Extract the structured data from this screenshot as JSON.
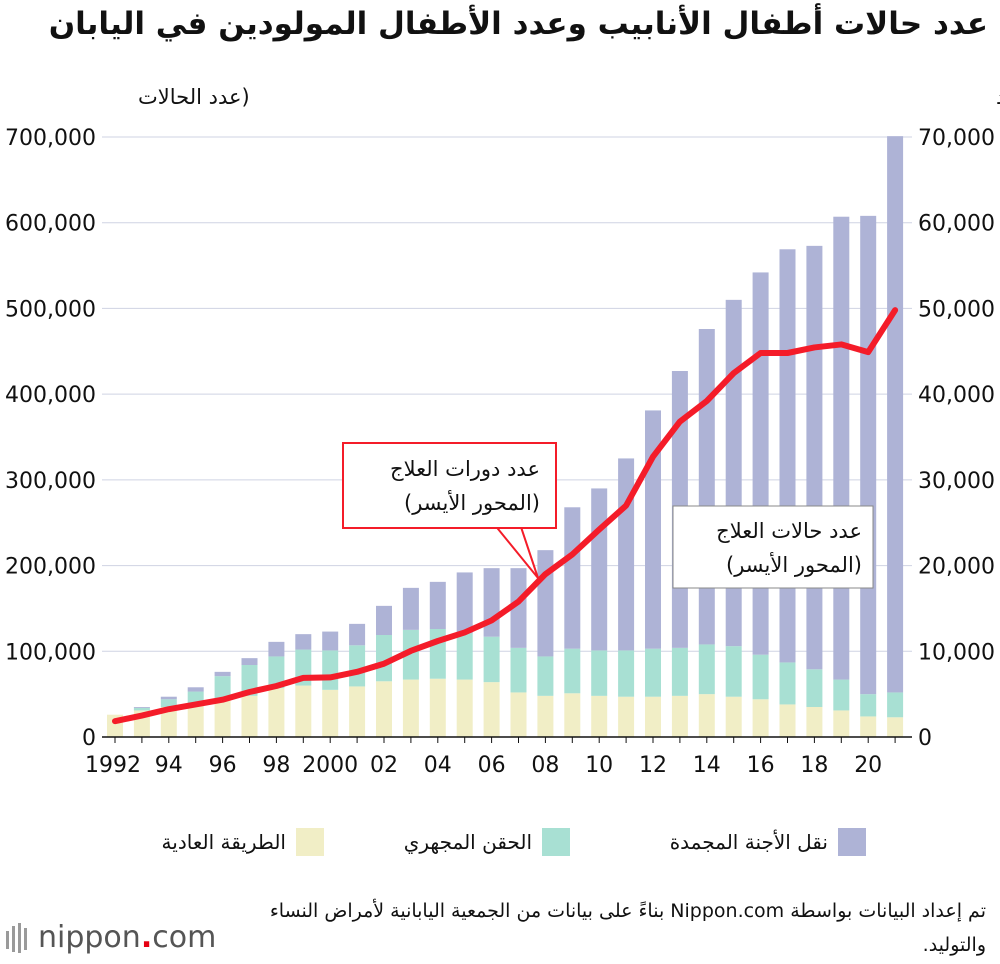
{
  "title": "عدد حالات أطفال الأنابيب وعدد الأطفال المولودين في اليابان",
  "source_note": "تم إعداد البيانات بواسطة Nippon.com بناءً على بيانات من الجمعية اليابانية لأمراض النساء والتوليد.",
  "logo": {
    "name": "nippon",
    "dot": ".",
    "suffix": "com"
  },
  "colors": {
    "frozen": "#aeb3d6",
    "icsi": "#a8e0d3",
    "conventional": "#f1eec6",
    "line": "#f41c29",
    "grid": "#cfd3e3"
  },
  "chart_data": {
    "type": "bar",
    "stacked": true,
    "title": "عدد حالات أطفال الأنابيب وعدد الأطفال المولودين في اليابان",
    "left_axis_label": "(عدد الحالات",
    "right_axis_label": "(المواليد",
    "left_ylim": [
      0,
      700000
    ],
    "right_ylim": [
      0,
      70000
    ],
    "left_ticks": [
      "0",
      "100,000",
      "200,000",
      "300,000",
      "400,000",
      "500,000",
      "600,000",
      "700,000"
    ],
    "right_ticks": [
      "0",
      "10,000",
      "20,000",
      "30,000",
      "40,000",
      "50,000",
      "60,000",
      "70,000"
    ],
    "x_tick_labels": [
      "1992",
      "94",
      "96",
      "98",
      "2000",
      "02",
      "04",
      "06",
      "08",
      "10",
      "12",
      "14",
      "16",
      "18",
      "20"
    ],
    "years": [
      1992,
      1993,
      1994,
      1995,
      1996,
      1997,
      1998,
      1999,
      2000,
      2001,
      2002,
      2003,
      2004,
      2005,
      2006,
      2007,
      2008,
      2009,
      2010,
      2011,
      2012,
      2013,
      2014,
      2015,
      2016,
      2017,
      2018,
      2019,
      2020,
      2021
    ],
    "series": [
      {
        "name": "الطريقة العادية",
        "key": "conventional",
        "axis": "right",
        "values": [
          2600,
          3100,
          3500,
          3800,
          4300,
          4800,
          5700,
          6000,
          5500,
          5900,
          6500,
          6700,
          6800,
          6700,
          6400,
          5200,
          4800,
          5100,
          4800,
          4700,
          4700,
          4800,
          5000,
          4700,
          4400,
          3800,
          3500,
          3100,
          2400,
          2300
        ]
      },
      {
        "name": "الحقن المجهري",
        "key": "icsi",
        "axis": "right",
        "values": [
          0,
          300,
          900,
          1500,
          2800,
          3600,
          3700,
          4200,
          4600,
          4800,
          5400,
          5800,
          5800,
          5400,
          5300,
          5200,
          4600,
          5200,
          5300,
          5400,
          5600,
          5600,
          5800,
          5900,
          5200,
          4900,
          4400,
          3600,
          2600,
          2900
        ]
      },
      {
        "name": "نقل الأجنة المجمدة",
        "key": "frozen",
        "axis": "right",
        "values": [
          0,
          100,
          300,
          500,
          500,
          800,
          1700,
          1800,
          2200,
          2500,
          3400,
          4900,
          5500,
          7100,
          8000,
          9300,
          12400,
          16500,
          18900,
          22400,
          27800,
          32300,
          36800,
          40400,
          44600,
          48200,
          49400,
          54000,
          55800,
          64900
        ]
      },
      {
        "name": "عدد دورات العلاج (المحور الأيسر)",
        "key": "cycles",
        "axis": "left",
        "type": "line",
        "values": [
          18500,
          25000,
          32500,
          38000,
          43500,
          52500,
          59500,
          69000,
          69500,
          76000,
          85500,
          100500,
          112000,
          122000,
          136000,
          158000,
          190000,
          213000,
          242000,
          270000,
          327000,
          368000,
          392000,
          424500,
          448000,
          448000,
          454500,
          458000,
          449000,
          498000
        ]
      }
    ],
    "legend": [
      "الطريقة العادية",
      "الحقن المجهري",
      "نقل الأجنة المجمدة"
    ],
    "callout": {
      "line1": "عدد دورات العلاج",
      "line2": "(المحور الأيسر)"
    },
    "annotation": {
      "line1": "عدد حالات العلاج",
      "line2": "(المحور الأيسر)"
    }
  }
}
